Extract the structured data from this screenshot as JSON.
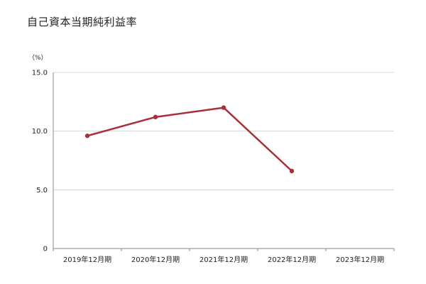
{
  "chart_data": {
    "type": "line",
    "title": "自己資本当期純利益率",
    "unit_label": "（%）",
    "categories": [
      "2019年12月期",
      "2020年12月期",
      "2021年12月期",
      "2022年12月期",
      "2023年12月期"
    ],
    "series": [
      {
        "values": [
          9.6,
          11.2,
          12.0,
          6.6,
          null
        ]
      }
    ],
    "y_ticks": [
      "15.0",
      "10.0",
      "5.0",
      "0"
    ],
    "ylim": [
      0,
      15
    ],
    "grid": true,
    "color": "#a8303a"
  }
}
